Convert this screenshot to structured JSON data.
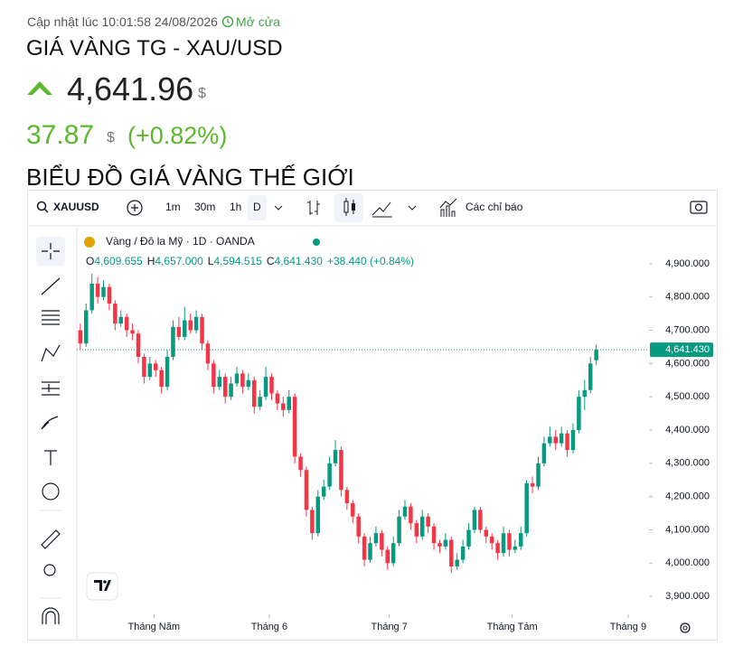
{
  "header": {
    "updated": "Cập nhật lúc 10:01:58 24/08/2026",
    "status": "Mở cửa",
    "title": "GIÁ VÀNG TG - XAU/USD",
    "price": "4,641.96",
    "price_unit": "$",
    "change": "37.87",
    "change_unit": "$",
    "change_pct": "(+0.82%)",
    "section_title": "BIỂU ĐỒ GIÁ VÀNG THẾ GIỚI"
  },
  "toolbar": {
    "symbol": "XAUUSD",
    "intervals": [
      "1m",
      "30m",
      "1h",
      "D"
    ],
    "indicators": "Các chỉ báo"
  },
  "chart_data": {
    "type": "candlestick",
    "title": "Vàng / Đô la Mỹ · 1D · OANDA",
    "ohlc_legend": [
      {
        "key": "O",
        "value": "4,609.655"
      },
      {
        "key": "H",
        "value": "4,657.000"
      },
      {
        "key": "L",
        "value": "4,594.515"
      },
      {
        "key": "C",
        "value": "4,641.430"
      }
    ],
    "change_label": "+38.440 (+0.84%)",
    "up_color": "#089981",
    "down_color": "#f23645",
    "last_price": {
      "value": 4641.43,
      "label": "4,641.430"
    },
    "categories": [
      null,
      null,
      null,
      null,
      null,
      null,
      null,
      null,
      null,
      null,
      null,
      null,
      null,
      null,
      null,
      null,
      null,
      null,
      null,
      null,
      null,
      null,
      null,
      null,
      null,
      null,
      null,
      null,
      null,
      null,
      null,
      null,
      null,
      null,
      null,
      null,
      null,
      null,
      null,
      null,
      null,
      null,
      null,
      null,
      null,
      null,
      null,
      null,
      null,
      null,
      null,
      null,
      null,
      null,
      null,
      null,
      null,
      null,
      null,
      null,
      null,
      null,
      null,
      null,
      null,
      null,
      null,
      null,
      null,
      null,
      null,
      null,
      null,
      null,
      null,
      null,
      null,
      null,
      null,
      null,
      null,
      null,
      null,
      null,
      null,
      null,
      null,
      null,
      null,
      null
    ],
    "open": [
      4700,
      4660,
      4760,
      4840,
      4800,
      4830,
      4780,
      4720,
      4740,
      4700,
      4690,
      4620,
      4560,
      4600,
      4580,
      4530,
      4620,
      4710,
      4680,
      4730,
      4700,
      4740,
      4660,
      4600,
      4530,
      4560,
      4500,
      4540,
      4570,
      4530,
      4550,
      4470,
      4500,
      4560,
      4510,
      4480,
      4460,
      4500,
      4320,
      4280,
      4160,
      4090,
      4200,
      4230,
      4300,
      4340,
      4220,
      4180,
      4140,
      4080,
      4010,
      4060,
      4090,
      4040,
      4000,
      4060,
      4140,
      4170,
      4120,
      4080,
      4140,
      4110,
      4060,
      4050,
      4070,
      3990,
      4010,
      4050,
      4100,
      4160,
      4100,
      4080,
      4060,
      4030,
      4090,
      4040,
      4050,
      4090,
      4240,
      4230,
      4300,
      4360,
      4380,
      4360,
      4390,
      4340,
      4400,
      4500,
      4520,
      4609.655
    ],
    "high": [
      4720,
      4780,
      4870,
      4860,
      4850,
      4840,
      4790,
      4760,
      4750,
      4720,
      4700,
      4630,
      4620,
      4610,
      4590,
      4640,
      4730,
      4740,
      4770,
      4750,
      4760,
      4750,
      4670,
      4610,
      4580,
      4570,
      4560,
      4590,
      4580,
      4570,
      4560,
      4520,
      4590,
      4570,
      4520,
      4500,
      4520,
      4510,
      4330,
      4290,
      4170,
      4220,
      4250,
      4320,
      4370,
      4350,
      4230,
      4190,
      4150,
      4090,
      4080,
      4110,
      4100,
      4050,
      4080,
      4160,
      4190,
      4180,
      4130,
      4160,
      4150,
      4120,
      4070,
      4090,
      4080,
      4030,
      4070,
      4120,
      4170,
      4170,
      4110,
      4090,
      4070,
      4110,
      4100,
      4070,
      4110,
      4250,
      4260,
      4320,
      4380,
      4410,
      4400,
      4410,
      4400,
      4420,
      4520,
      4550,
      4620,
      4657
    ],
    "low": [
      4640,
      4650,
      4750,
      4780,
      4790,
      4760,
      4700,
      4710,
      4680,
      4670,
      4600,
      4540,
      4550,
      4560,
      4510,
      4520,
      4610,
      4670,
      4670,
      4690,
      4690,
      4640,
      4580,
      4510,
      4520,
      4480,
      4490,
      4530,
      4510,
      4520,
      4450,
      4460,
      4490,
      4490,
      4460,
      4440,
      4450,
      4300,
      4260,
      4140,
      4070,
      4080,
      4190,
      4220,
      4290,
      4200,
      4160,
      4120,
      4060,
      3990,
      4000,
      4050,
      4020,
      3980,
      3990,
      4050,
      4130,
      4100,
      4060,
      4070,
      4090,
      4040,
      4030,
      4040,
      3970,
      3980,
      4000,
      4040,
      4090,
      4090,
      4060,
      4040,
      4010,
      4020,
      4020,
      4030,
      4040,
      4080,
      4210,
      4220,
      4290,
      4350,
      4340,
      4350,
      4320,
      4330,
      4390,
      4460,
      4510,
      4594.515
    ],
    "close": [
      4660,
      4760,
      4840,
      4800,
      4830,
      4780,
      4720,
      4740,
      4700,
      4690,
      4620,
      4560,
      4600,
      4580,
      4530,
      4620,
      4710,
      4680,
      4730,
      4700,
      4740,
      4660,
      4600,
      4530,
      4560,
      4500,
      4540,
      4570,
      4530,
      4550,
      4470,
      4500,
      4560,
      4510,
      4480,
      4460,
      4500,
      4320,
      4280,
      4160,
      4090,
      4200,
      4230,
      4300,
      4340,
      4220,
      4180,
      4140,
      4080,
      4010,
      4060,
      4090,
      4040,
      4000,
      4060,
      4140,
      4170,
      4120,
      4080,
      4140,
      4110,
      4060,
      4050,
      4070,
      3990,
      4010,
      4050,
      4100,
      4160,
      4100,
      4080,
      4060,
      4030,
      4090,
      4040,
      4050,
      4090,
      4240,
      4230,
      4300,
      4360,
      4380,
      4360,
      4390,
      4340,
      4400,
      4500,
      4520,
      4600,
      4641.43
    ],
    "xlim": [
      -0.6,
      98.1
    ],
    "xticks": [
      {
        "value": 12.7,
        "label": "Tháng Năm"
      },
      {
        "value": 32.6,
        "label": "Tháng 6"
      },
      {
        "value": 53.3,
        "label": "Tháng 7"
      },
      {
        "value": 74.5,
        "label": "Tháng Tám"
      },
      {
        "value": 94.5,
        "label": "Tháng 9"
      }
    ],
    "ylim": [
      3846,
      4992
    ],
    "yticks": [
      {
        "value": 3900,
        "label": "3,900.000"
      },
      {
        "value": 4000,
        "label": "4,000.000"
      },
      {
        "value": 4100,
        "label": "4,100.000"
      },
      {
        "value": 4200,
        "label": "4,200.000"
      },
      {
        "value": 4300,
        "label": "4,300.000"
      },
      {
        "value": 4400,
        "label": "4,400.000"
      },
      {
        "value": 4500,
        "label": "4,500.000"
      },
      {
        "value": 4600,
        "label": "4,600.000"
      },
      {
        "value": 4700,
        "label": "4,700.000"
      },
      {
        "value": 4800,
        "label": "4,800.000"
      },
      {
        "value": 4900,
        "label": "4,900.000"
      }
    ]
  }
}
